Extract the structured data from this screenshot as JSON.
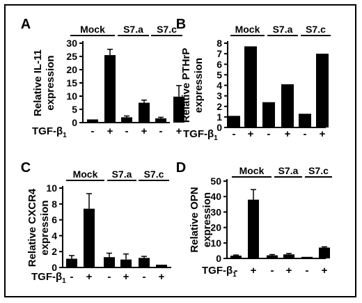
{
  "chart_data": [
    {
      "type": "bar",
      "panel_letter": "A",
      "ylabel_line1": "Relative IL-11",
      "ylabel_line2": "expression",
      "ylim": [
        0,
        30
      ],
      "yticks": [
        0,
        5,
        10,
        15,
        20,
        25,
        30
      ],
      "groups": [
        "Mock",
        "S7.a",
        "S7.c"
      ],
      "categories": [
        "-",
        "+",
        "-",
        "+",
        "-",
        "+"
      ],
      "values": [
        1.2,
        25.5,
        2.0,
        7.5,
        1.6,
        9.8
      ],
      "errors": [
        0,
        2.2,
        0.5,
        1.0,
        0.4,
        4.2
      ],
      "treatment_label": "TGF-β",
      "treatment_subscript": "1"
    },
    {
      "type": "bar",
      "panel_letter": "B",
      "ylabel_line1": "Relative PTHrP",
      "ylabel_line2": "expression",
      "ylim": [
        0,
        8
      ],
      "yticks": [
        0,
        1,
        2,
        3,
        4,
        5,
        6,
        7,
        8
      ],
      "groups": [
        "Mock",
        "S7.a",
        "S7.c"
      ],
      "categories": [
        "-",
        "+",
        "-",
        "+",
        "-",
        "+"
      ],
      "values": [
        1.1,
        7.7,
        2.4,
        4.1,
        1.3,
        7.0
      ],
      "errors": [
        0,
        0,
        0,
        0,
        0,
        0
      ],
      "treatment_label": "TGF-β",
      "treatment_subscript": "1"
    },
    {
      "type": "bar",
      "panel_letter": "C",
      "ylabel_line1": "Relative CXCR4",
      "ylabel_line2": "expression",
      "ylim": [
        0,
        10
      ],
      "yticks": [
        0,
        2,
        4,
        6,
        8,
        10
      ],
      "groups": [
        "Mock",
        "S7.a",
        "S7.c"
      ],
      "categories": [
        "-",
        "+",
        "-",
        "+",
        "-",
        "+"
      ],
      "values": [
        1.1,
        7.4,
        1.3,
        1.0,
        1.2,
        0.35
      ],
      "errors": [
        0.4,
        1.9,
        0.5,
        0.7,
        0.2,
        0
      ],
      "treatment_label": "TGF-β",
      "treatment_subscript": "1"
    },
    {
      "type": "bar",
      "panel_letter": "D",
      "ylabel_line1": "Relative OPN",
      "ylabel_line2": "expression",
      "ylim": [
        0,
        50
      ],
      "yticks": [
        0,
        10,
        20,
        30,
        40,
        50
      ],
      "groups": [
        "Mock",
        "S7.a",
        "S7.c"
      ],
      "categories": [
        "-",
        "+",
        "-",
        "+",
        "-",
        "+"
      ],
      "values": [
        1.8,
        38.0,
        2.0,
        2.6,
        1.0,
        7.0
      ],
      "errors": [
        0.4,
        6.5,
        0.5,
        0.6,
        0,
        0.5
      ],
      "treatment_label": "TGF-β",
      "treatment_subscript": "1"
    }
  ]
}
